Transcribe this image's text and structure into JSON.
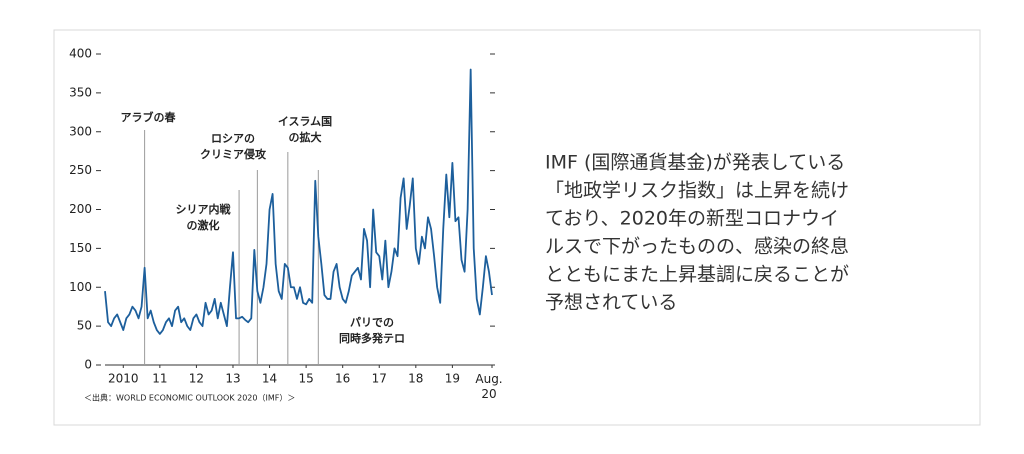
{
  "chart_data": {
    "type": "line",
    "categories": [
      null,
      null,
      null,
      null,
      null,
      null,
      "2010",
      null,
      null,
      null,
      null,
      null,
      null,
      null,
      null,
      null,
      null,
      null,
      "11",
      null,
      null,
      null,
      null,
      null,
      null,
      null,
      null,
      null,
      null,
      null,
      "12",
      null,
      null,
      null,
      null,
      null,
      null,
      null,
      null,
      null,
      null,
      null,
      "13",
      null,
      null,
      null,
      null,
      null,
      null,
      null,
      null,
      null,
      null,
      null,
      "14",
      null,
      null,
      null,
      null,
      null,
      null,
      null,
      null,
      null,
      null,
      null,
      "15",
      null,
      null,
      null,
      null,
      null,
      null,
      null,
      null,
      null,
      null,
      null,
      "16",
      null,
      null,
      null,
      null,
      null,
      null,
      null,
      null,
      null,
      null,
      null,
      "17",
      null,
      null,
      null,
      null,
      null,
      null,
      null,
      null,
      null,
      null,
      null,
      "18",
      null,
      null,
      null,
      null,
      null,
      null,
      null,
      null,
      null,
      null,
      null,
      "19",
      null,
      null,
      null,
      null,
      null,
      null,
      null,
      null,
      null,
      null,
      null,
      null,
      "Aug. 20"
    ],
    "series": [
      {
        "color": "#1d5f9c",
        "values": [
          95,
          55,
          50,
          60,
          65,
          55,
          45,
          60,
          65,
          75,
          70,
          60,
          75,
          125,
          60,
          70,
          55,
          45,
          40,
          45,
          55,
          60,
          50,
          70,
          75,
          55,
          60,
          50,
          45,
          60,
          65,
          55,
          50,
          80,
          65,
          70,
          85,
          60,
          80,
          65,
          50,
          100,
          145,
          60,
          60,
          62,
          58,
          55,
          60,
          148,
          95,
          80,
          100,
          130,
          200,
          220,
          130,
          95,
          85,
          130,
          125,
          100,
          100,
          85,
          100,
          80,
          78,
          85,
          80,
          237,
          165,
          130,
          90,
          85,
          85,
          120,
          130,
          100,
          85,
          80,
          95,
          115,
          120,
          125,
          110,
          175,
          160,
          100,
          200,
          145,
          140,
          110,
          160,
          100,
          120,
          150,
          140,
          215,
          240,
          175,
          205,
          240,
          150,
          130,
          165,
          150,
          190,
          175,
          140,
          100,
          80,
          175,
          245,
          190,
          260,
          185,
          190,
          135,
          120,
          200,
          380,
          150,
          85,
          65,
          100,
          140,
          120,
          90
        ]
      }
    ],
    "ylim": [
      0,
      400
    ],
    "yticks": [
      0,
      50,
      100,
      150,
      200,
      250,
      300,
      350,
      400
    ],
    "annotations": [
      {
        "lines": [
          "アラブの春"
        ],
        "x": 13
      },
      {
        "lines": [
          "シリア内戦",
          "の激化"
        ],
        "x": 44
      },
      {
        "lines": [
          "ロシアの",
          "クリミア侵攻"
        ],
        "x": 50
      },
      {
        "lines": [
          "イスラム国",
          "の拡大"
        ],
        "x": 60
      },
      {
        "lines": [
          "パリでの",
          "同時多発テロ"
        ],
        "x": 70
      }
    ],
    "source": "＜出典：WORLD ECONOMIC OUTLOOK 2020（IMF）＞"
  },
  "text": {
    "lines": [
      "IMF (国際通貨基金)が発表している",
      "「地政学リスク指数」は上昇を続け",
      "ており、2020年の新型コロナウイ",
      "ルスで下がったものの、感染の終息",
      "とともにまた上昇基調に戻ることが",
      "予想されている"
    ]
  }
}
